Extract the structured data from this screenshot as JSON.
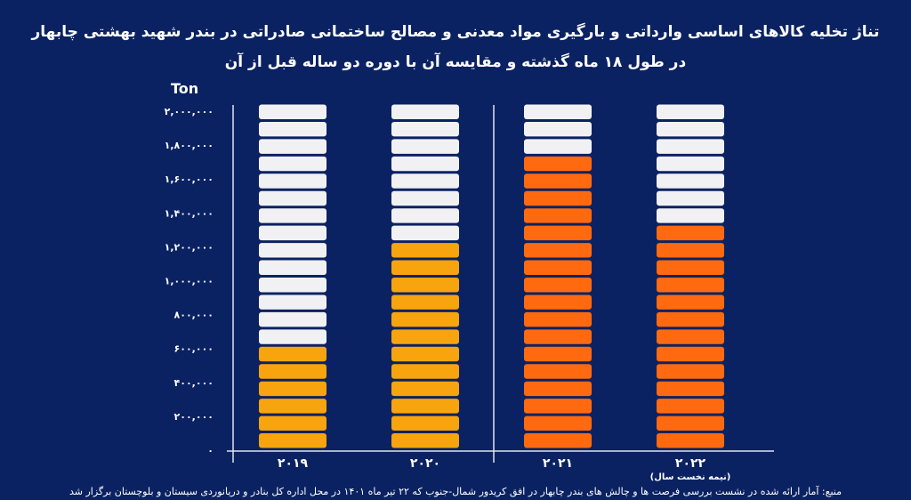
{
  "title_line1": "تناژ تخلیه کالاهای اساسی وارداتی و بارگیری مواد معدنی و مصالح ساختمانی صادراتی در بندر شهید بهشتی چابهار",
  "title_line2": "در طول ۱۸ ماه گذشته و مقایسه آن با دوره دو ساله قبل از آن",
  "source": "منبع: آمار ارائه شده در نشست بررسی فرصت ها و چالش های بندر چابهار در افق کریدور شمال-جنوب که ۲۲ تیر ماه ۱۴۰۱ در محل اداره کل بنادر و دریانوردی سیستان و بلوچستان برگزار شد",
  "chart_data": {
    "type": "bar",
    "ylabel": "Ton",
    "ylim": [
      0,
      2000000
    ],
    "segment_size": 100000,
    "yticks": [
      0,
      200000,
      400000,
      600000,
      800000,
      1000000,
      1200000,
      1400000,
      1600000,
      1800000,
      2000000
    ],
    "ytick_labels": [
      "۰",
      "۲۰۰,۰۰۰",
      "۴۰۰,۰۰۰",
      "۶۰۰,۰۰۰",
      "۸۰۰,۰۰۰",
      "۱,۰۰۰,۰۰۰",
      "۱,۲۰۰,۰۰۰",
      "۱,۴۰۰,۰۰۰",
      "۱,۶۰۰,۰۰۰",
      "۱,۸۰۰,۰۰۰",
      "۲,۰۰۰,۰۰۰"
    ],
    "categories": [
      "۲۰۱۹",
      "۲۰۲۰",
      "۲۰۲۱",
      "۲۰۲۲"
    ],
    "category_notes": [
      "",
      "",
      "",
      "(نیمه نخست سال)"
    ],
    "values": [
      600000,
      1200000,
      1700000,
      1300000
    ],
    "colors": [
      "#f7a40e",
      "#f7a40e",
      "#ff6a10",
      "#ff6a10"
    ],
    "empty_color": "#f1f1f4",
    "grid": false
  }
}
